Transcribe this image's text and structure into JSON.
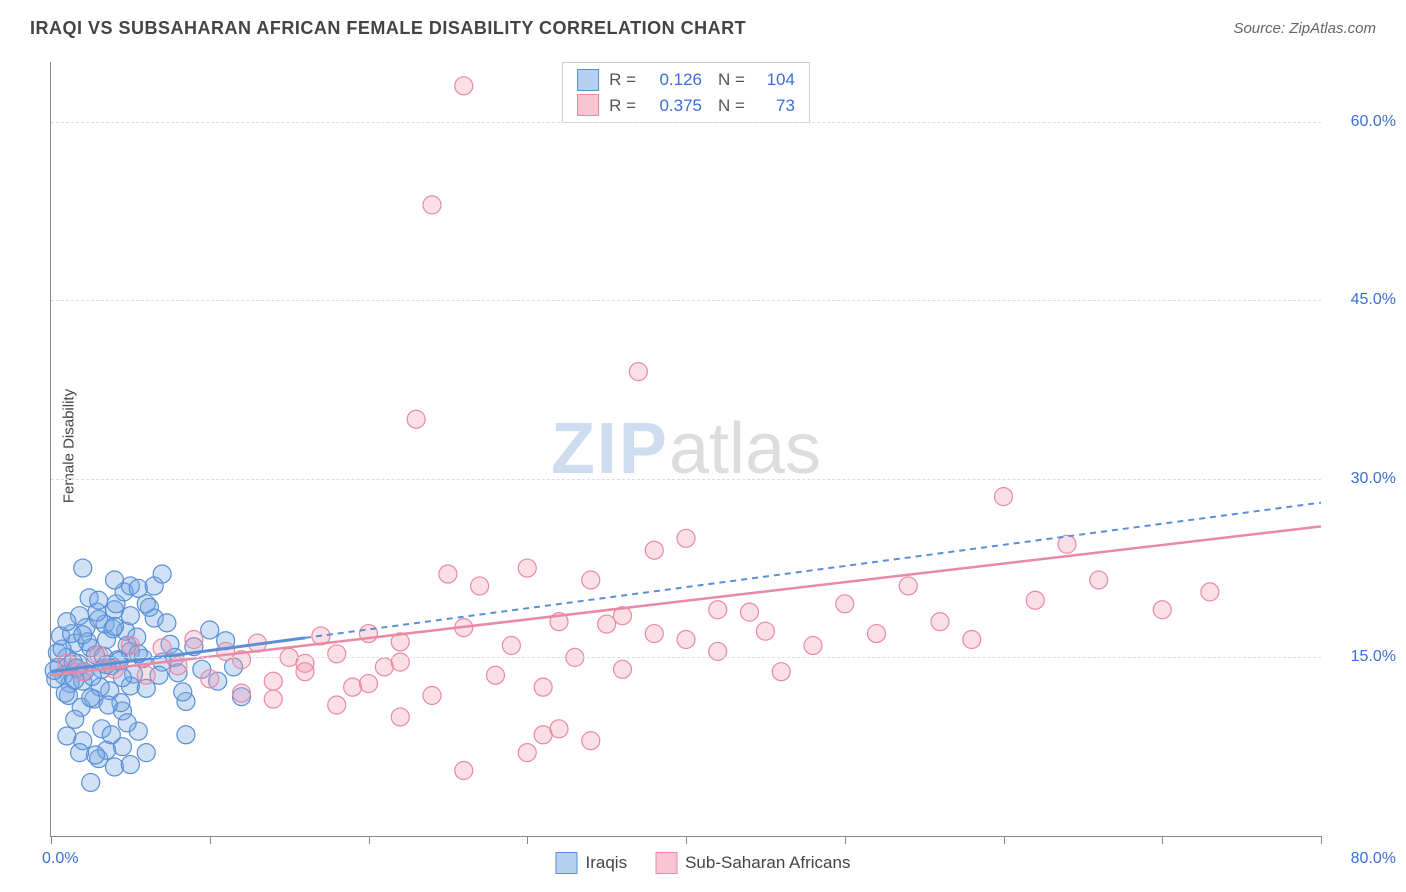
{
  "header": {
    "title": "IRAQI VS SUBSAHARAN AFRICAN FEMALE DISABILITY CORRELATION CHART",
    "source_label": "Source: ZipAtlas.com"
  },
  "y_axis_label": "Female Disability",
  "watermark": {
    "part1": "ZIP",
    "part2": "atlas"
  },
  "chart": {
    "type": "scatter",
    "xlim": [
      0,
      80
    ],
    "ylim": [
      0,
      65
    ],
    "x_ticks": [
      0,
      10,
      20,
      30,
      40,
      50,
      60,
      70,
      80
    ],
    "x_tick_labels": {
      "0": "0.0%",
      "80": "80.0%"
    },
    "y_ticks": [
      15,
      30,
      45,
      60
    ],
    "y_tick_labels": {
      "15": "15.0%",
      "30": "30.0%",
      "45": "45.0%",
      "60": "60.0%"
    },
    "background_color": "#ffffff",
    "grid_color": "#dddddd",
    "axis_color": "#888888",
    "tick_label_color": "#3b6fd6",
    "series": [
      {
        "name": "Iraqis",
        "color_fill": "rgba(120,170,230,0.35)",
        "color_stroke": "#5a8fd6",
        "marker_radius": 9,
        "trend": {
          "x1": 0,
          "y1": 13.8,
          "x2": 80,
          "y2": 28.0,
          "style": "solid-then-dash",
          "solid_until_x": 16,
          "width": 2
        },
        "points": [
          [
            0.5,
            14.2
          ],
          [
            0.8,
            13.5
          ],
          [
            1.0,
            15.0
          ],
          [
            1.2,
            12.8
          ],
          [
            1.5,
            16.2
          ],
          [
            1.7,
            14.5
          ],
          [
            2.0,
            13.0
          ],
          [
            2.2,
            17.5
          ],
          [
            2.5,
            15.8
          ],
          [
            2.7,
            11.5
          ],
          [
            3.0,
            18.2
          ],
          [
            3.2,
            14.0
          ],
          [
            3.5,
            16.5
          ],
          [
            3.7,
            12.2
          ],
          [
            4.0,
            19.0
          ],
          [
            4.2,
            14.8
          ],
          [
            4.5,
            10.5
          ],
          [
            4.7,
            17.2
          ],
          [
            5.0,
            15.5
          ],
          [
            0.3,
            13.2
          ],
          [
            0.6,
            16.8
          ],
          [
            1.1,
            11.8
          ],
          [
            1.4,
            14.6
          ],
          [
            1.8,
            18.5
          ],
          [
            2.1,
            13.8
          ],
          [
            2.4,
            20.0
          ],
          [
            2.8,
            15.2
          ],
          [
            3.1,
            12.5
          ],
          [
            3.4,
            17.8
          ],
          [
            3.8,
            14.3
          ],
          [
            4.1,
            19.5
          ],
          [
            4.4,
            11.2
          ],
          [
            4.8,
            16.0
          ],
          [
            5.2,
            13.6
          ],
          [
            0.4,
            15.4
          ],
          [
            0.9,
            12.0
          ],
          [
            1.3,
            17.0
          ],
          [
            1.6,
            14.1
          ],
          [
            1.9,
            10.8
          ],
          [
            2.3,
            16.3
          ],
          [
            2.6,
            13.4
          ],
          [
            2.9,
            18.8
          ],
          [
            3.3,
            15.1
          ],
          [
            3.6,
            11.0
          ],
          [
            3.9,
            17.4
          ],
          [
            4.3,
            14.7
          ],
          [
            4.6,
            20.5
          ],
          [
            5.0,
            12.6
          ],
          [
            5.4,
            16.7
          ],
          [
            5.8,
            14.9
          ],
          [
            0.2,
            13.9
          ],
          [
            0.7,
            15.7
          ],
          [
            1.0,
            18.0
          ],
          [
            1.5,
            13.1
          ],
          [
            2.0,
            16.9
          ],
          [
            2.5,
            11.6
          ],
          [
            3.0,
            19.8
          ],
          [
            3.5,
            14.4
          ],
          [
            4.0,
            17.6
          ],
          [
            4.5,
            13.3
          ],
          [
            5.0,
            21.0
          ],
          [
            5.5,
            15.3
          ],
          [
            6.0,
            12.4
          ],
          [
            6.5,
            18.3
          ],
          [
            7.0,
            14.6
          ],
          [
            7.5,
            16.1
          ],
          [
            8.0,
            13.7
          ],
          [
            8.5,
            11.3
          ],
          [
            9.0,
            15.9
          ],
          [
            9.5,
            14.0
          ],
          [
            10.0,
            17.3
          ],
          [
            10.5,
            13.0
          ],
          [
            11.0,
            16.4
          ],
          [
            11.5,
            14.2
          ],
          [
            12.0,
            11.7
          ],
          [
            6.2,
            19.2
          ],
          [
            6.8,
            13.5
          ],
          [
            7.3,
            17.9
          ],
          [
            7.8,
            15.0
          ],
          [
            8.3,
            12.1
          ],
          [
            3.0,
            6.5
          ],
          [
            3.5,
            7.2
          ],
          [
            4.0,
            5.8
          ],
          [
            2.0,
            8.0
          ],
          [
            5.0,
            6.0
          ],
          [
            2.5,
            4.5
          ],
          [
            3.2,
            9.0
          ],
          [
            4.5,
            7.5
          ],
          [
            5.5,
            8.8
          ],
          [
            6.0,
            7.0
          ],
          [
            3.8,
            8.5
          ],
          [
            4.8,
            9.5
          ],
          [
            1.5,
            9.8
          ],
          [
            2.8,
            6.8
          ],
          [
            1.0,
            8.4
          ],
          [
            1.8,
            7.0
          ],
          [
            5.0,
            18.5
          ],
          [
            5.5,
            20.8
          ],
          [
            4.0,
            21.5
          ],
          [
            6.0,
            19.5
          ],
          [
            6.5,
            21.0
          ],
          [
            7.0,
            22.0
          ],
          [
            2.0,
            22.5
          ],
          [
            8.5,
            8.5
          ]
        ]
      },
      {
        "name": "Sub-Saharan Africans",
        "color_fill": "rgba(240,150,175,0.30)",
        "color_stroke": "#e88aa5",
        "marker_radius": 9,
        "trend": {
          "x1": 0,
          "y1": 13.5,
          "x2": 80,
          "y2": 26.0,
          "style": "solid",
          "width": 2.5
        },
        "points": [
          [
            1.0,
            14.5
          ],
          [
            2.0,
            13.8
          ],
          [
            3.0,
            15.2
          ],
          [
            4.0,
            14.0
          ],
          [
            5.0,
            16.0
          ],
          [
            6.0,
            13.5
          ],
          [
            7.0,
            15.8
          ],
          [
            8.0,
            14.3
          ],
          [
            9.0,
            16.5
          ],
          [
            10.0,
            13.2
          ],
          [
            11.0,
            15.5
          ],
          [
            12.0,
            14.8
          ],
          [
            13.0,
            16.2
          ],
          [
            14.0,
            13.0
          ],
          [
            15.0,
            15.0
          ],
          [
            16.0,
            14.5
          ],
          [
            17.0,
            16.8
          ],
          [
            18.0,
            15.3
          ],
          [
            19.0,
            12.5
          ],
          [
            20.0,
            17.0
          ],
          [
            21.0,
            14.2
          ],
          [
            22.0,
            16.3
          ],
          [
            12.0,
            12.0
          ],
          [
            14.0,
            11.5
          ],
          [
            16.0,
            13.8
          ],
          [
            18.0,
            11.0
          ],
          [
            20.0,
            12.8
          ],
          [
            22.0,
            14.6
          ],
          [
            23.0,
            35.0
          ],
          [
            24.0,
            11.8
          ],
          [
            25.0,
            22.0
          ],
          [
            26.0,
            17.5
          ],
          [
            27.0,
            21.0
          ],
          [
            28.0,
            13.5
          ],
          [
            29.0,
            16.0
          ],
          [
            30.0,
            22.5
          ],
          [
            31.0,
            12.5
          ],
          [
            32.0,
            18.0
          ],
          [
            33.0,
            15.0
          ],
          [
            34.0,
            21.5
          ],
          [
            35.0,
            17.8
          ],
          [
            24.0,
            53.0
          ],
          [
            26.0,
            63.0
          ],
          [
            30.0,
            7.0
          ],
          [
            31.0,
            8.5
          ],
          [
            32.0,
            9.0
          ],
          [
            34.0,
            8.0
          ],
          [
            36.0,
            18.5
          ],
          [
            38.0,
            24.0
          ],
          [
            40.0,
            16.5
          ],
          [
            42.0,
            19.0
          ],
          [
            37.0,
            39.0
          ],
          [
            36.0,
            14.0
          ],
          [
            38.0,
            17.0
          ],
          [
            40.0,
            25.0
          ],
          [
            42.0,
            15.5
          ],
          [
            44.0,
            18.8
          ],
          [
            45.0,
            17.2
          ],
          [
            46.0,
            13.8
          ],
          [
            48.0,
            16.0
          ],
          [
            50.0,
            19.5
          ],
          [
            52.0,
            17.0
          ],
          [
            54.0,
            21.0
          ],
          [
            56.0,
            18.0
          ],
          [
            58.0,
            16.5
          ],
          [
            60.0,
            28.5
          ],
          [
            62.0,
            19.8
          ],
          [
            64.0,
            24.5
          ],
          [
            66.0,
            21.5
          ],
          [
            70.0,
            19.0
          ],
          [
            73.0,
            20.5
          ],
          [
            26.0,
            5.5
          ],
          [
            22.0,
            10.0
          ]
        ]
      }
    ]
  },
  "legend_top": {
    "rows": [
      {
        "swatch_fill": "rgba(120,170,230,0.55)",
        "swatch_stroke": "#5a8fd6",
        "r_label": "R =",
        "r_val": "0.126",
        "n_label": "N =",
        "n_val": "104"
      },
      {
        "swatch_fill": "rgba(240,150,175,0.55)",
        "swatch_stroke": "#e88aa5",
        "r_label": "R =",
        "r_val": "0.375",
        "n_label": "N =",
        "n_val": "73"
      }
    ]
  },
  "legend_bottom": {
    "items": [
      {
        "swatch_fill": "rgba(120,170,230,0.55)",
        "swatch_stroke": "#5a8fd6",
        "label": "Iraqis"
      },
      {
        "swatch_fill": "rgba(240,150,175,0.55)",
        "swatch_stroke": "#e88aa5",
        "label": "Sub-Saharan Africans"
      }
    ]
  }
}
